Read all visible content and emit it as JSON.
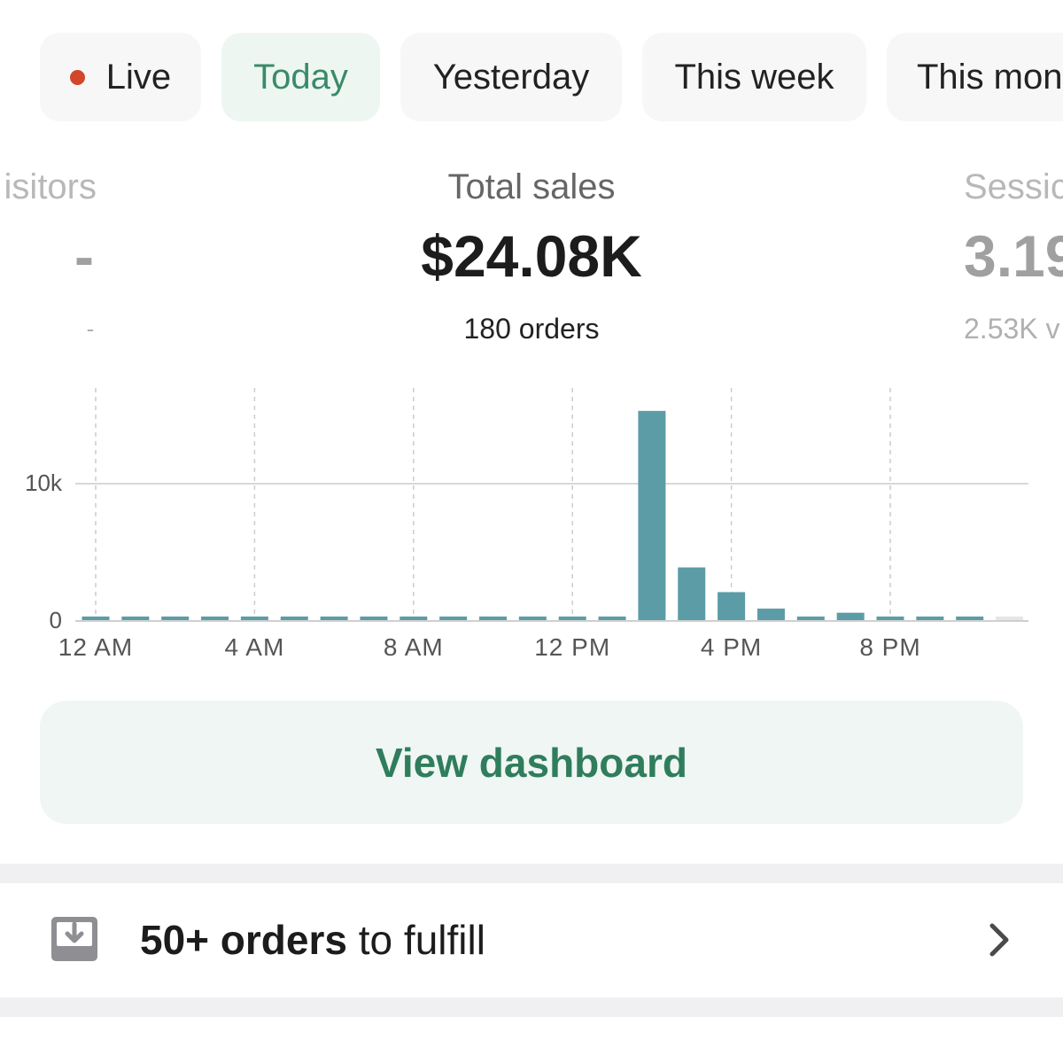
{
  "period_filters": [
    {
      "label": "Live",
      "active": false,
      "live_indicator": true
    },
    {
      "label": "Today",
      "active": true
    },
    {
      "label": "Yesterday",
      "active": false
    },
    {
      "label": "This week",
      "active": false
    },
    {
      "label": "This mon",
      "active": false
    }
  ],
  "metrics": {
    "visitors": {
      "label": "isitors",
      "value": "-",
      "sub": "-"
    },
    "sales": {
      "label": "Total sales",
      "value": "$24.08K",
      "sub": "180 orders"
    },
    "sessions": {
      "label": "Sessic",
      "value": "3.19",
      "sub": "2.53K v"
    }
  },
  "chart_data": {
    "type": "bar",
    "categories": [
      "12 AM",
      "1 AM",
      "2 AM",
      "3 AM",
      "4 AM",
      "5 AM",
      "6 AM",
      "7 AM",
      "8 AM",
      "9 AM",
      "10 AM",
      "11 AM",
      "12 PM",
      "1 PM",
      "2 PM",
      "3 PM",
      "4 PM",
      "5 PM",
      "6 PM",
      "7 PM",
      "8 PM",
      "9 PM",
      "10 PM",
      "11 PM"
    ],
    "values": [
      0,
      0,
      0,
      0,
      0,
      0,
      0,
      0,
      0,
      0,
      0,
      0,
      0,
      0,
      15300,
      3900,
      2100,
      900,
      300,
      600,
      0,
      0,
      0,
      0
    ],
    "future_from_index": 23,
    "y_ticks": [
      0,
      10000
    ],
    "y_tick_labels": [
      "0",
      "10k"
    ],
    "x_tick_labels": [
      "12 AM",
      "4 AM",
      "8 AM",
      "12 PM",
      "4 PM",
      "8 PM"
    ],
    "x_tick_hours": [
      0,
      4,
      8,
      12,
      16,
      20
    ],
    "ylim": [
      0,
      17000
    ],
    "colors": {
      "bar": "#5b9ca6",
      "future": "#e6e6e6",
      "axis": "#cfcfcf",
      "grid": "#cccccc"
    }
  },
  "cta": {
    "label": "View dashboard"
  },
  "fulfill": {
    "count": "50+ orders",
    "suffix": " to fulfill"
  }
}
